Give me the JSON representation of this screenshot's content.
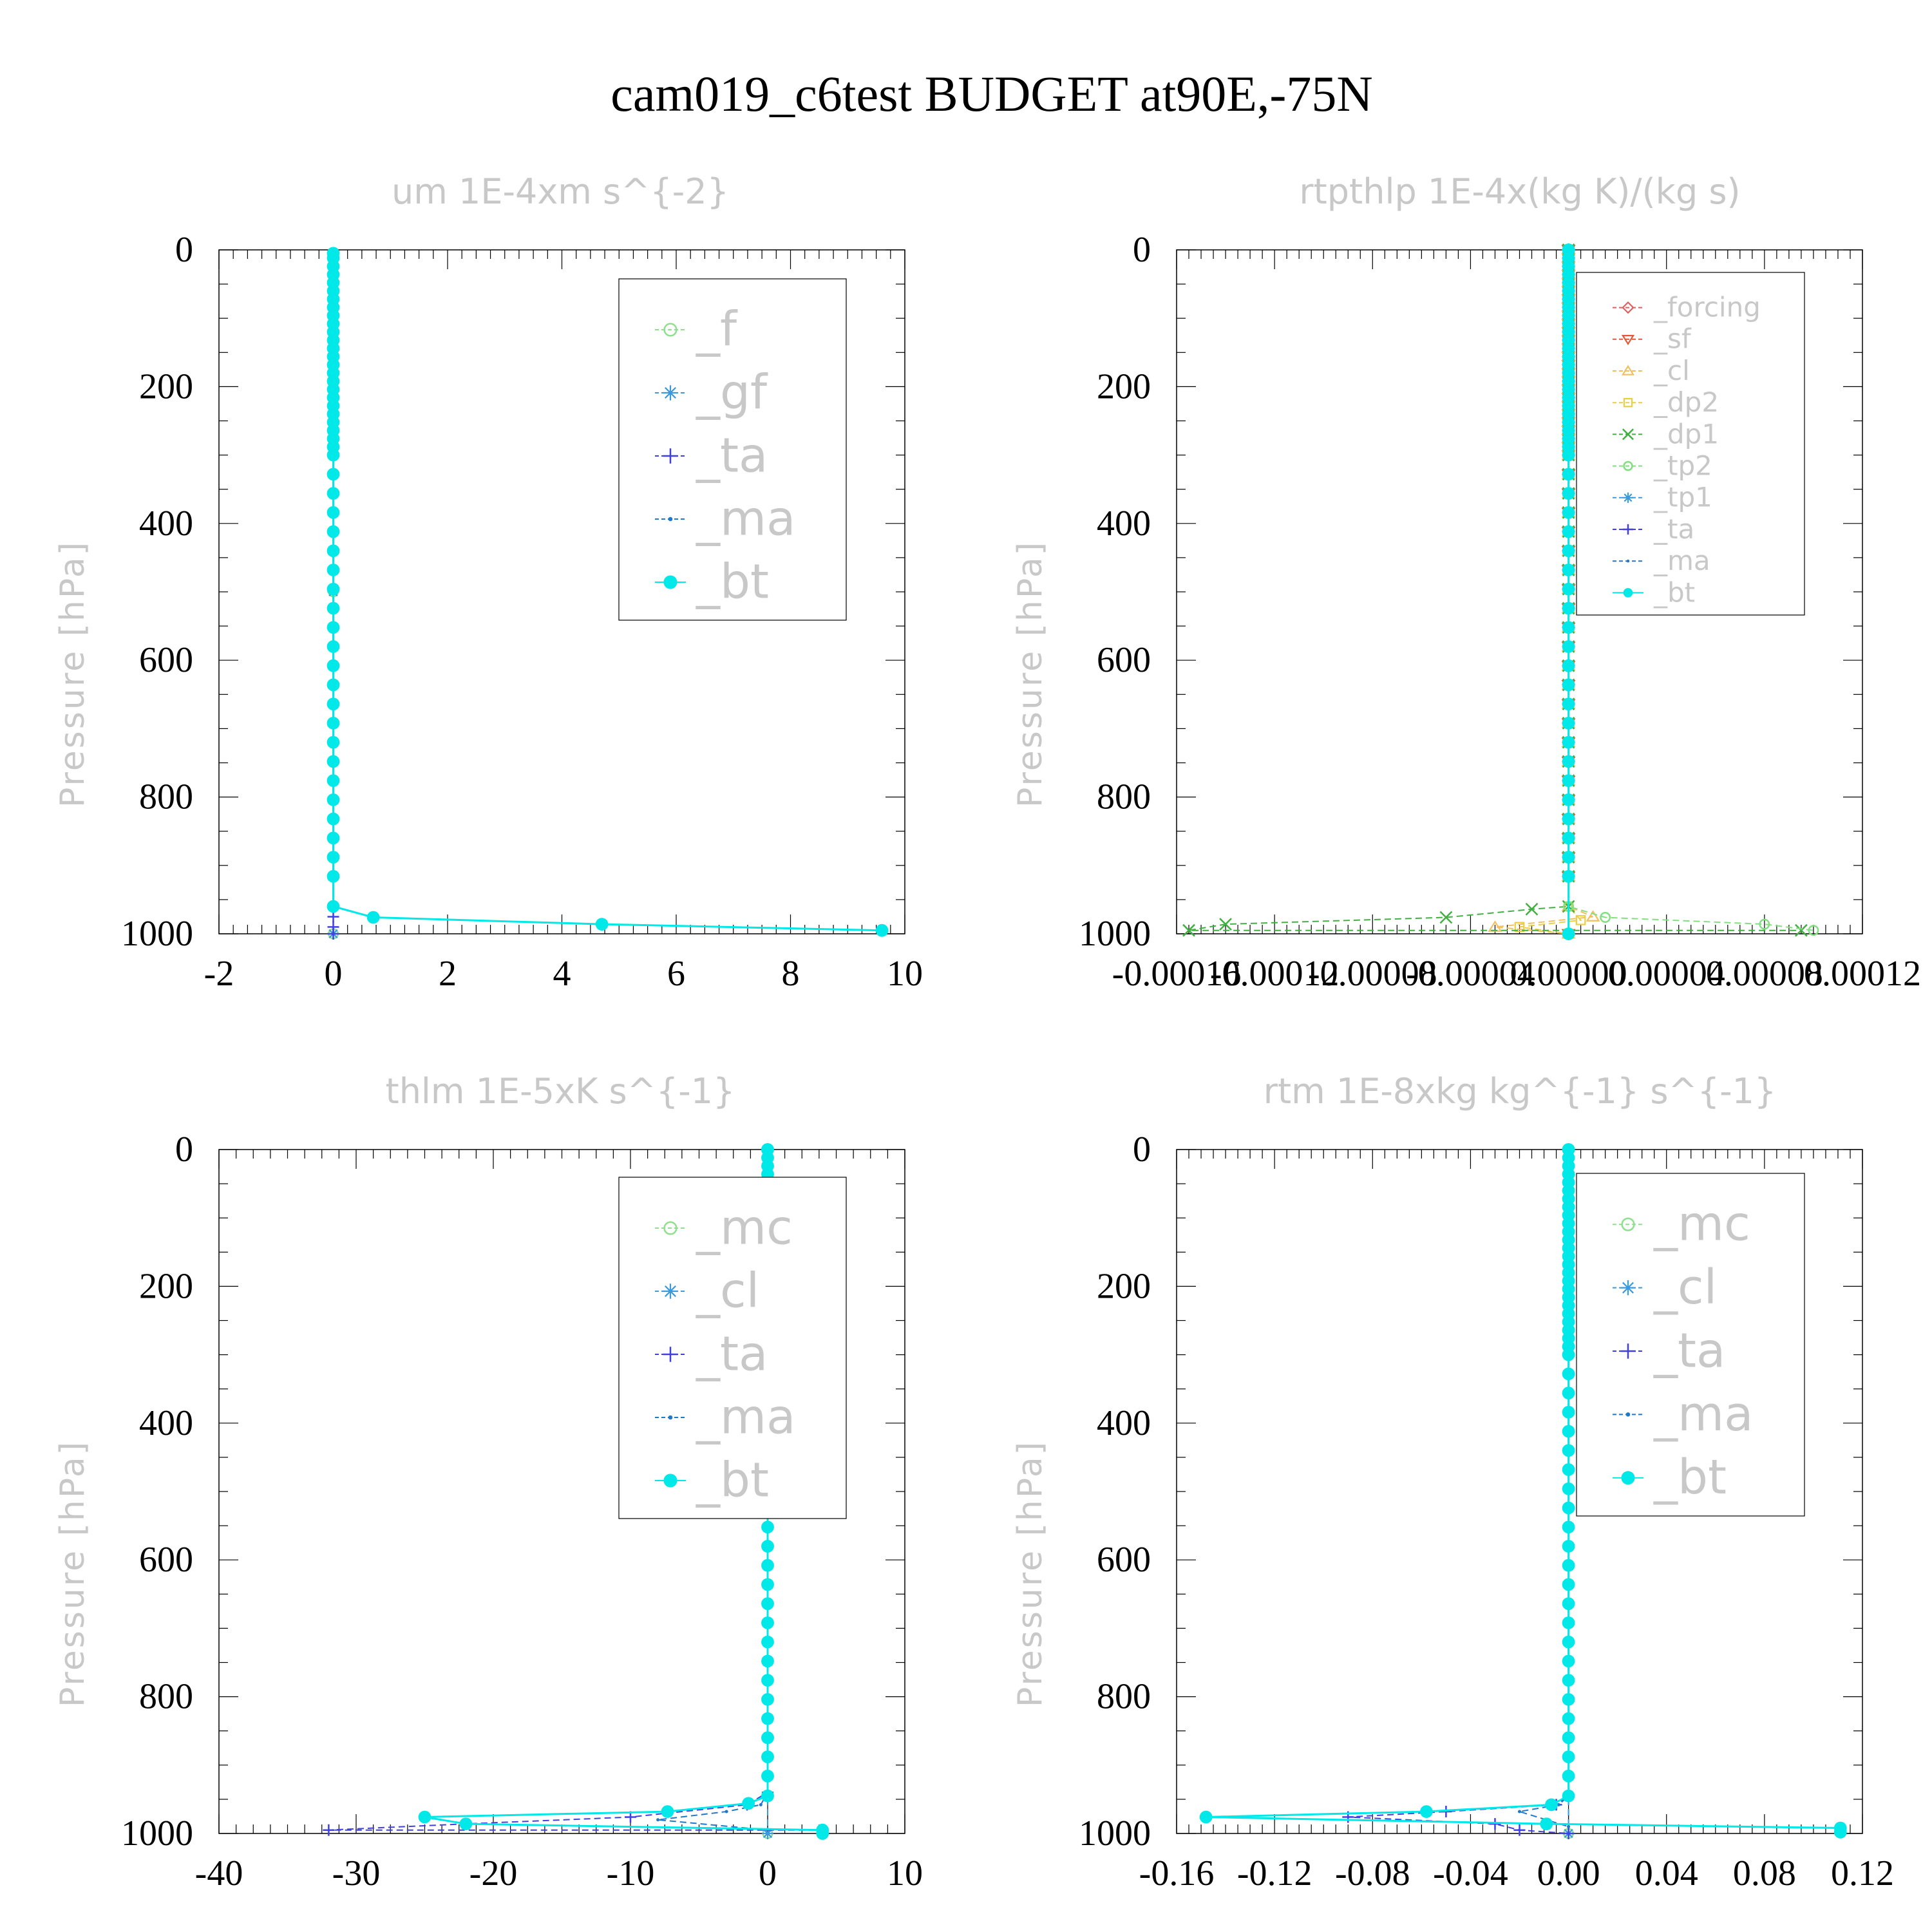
{
  "title": "cam019_c6test  BUDGET at90E,-75N",
  "chart_data": [
    {
      "type": "line",
      "title": "um   1E-4xm s^{-2}",
      "ylabel": "Pressure [hPa]",
      "xlabel": "",
      "xlim": [
        -2,
        10
      ],
      "ylim": [
        1000,
        0
      ],
      "xticks": [
        "-2",
        "0",
        "2",
        "4",
        "6",
        "8",
        "10"
      ],
      "yticks": [
        "0",
        "200",
        "400",
        "600",
        "800",
        "1000"
      ],
      "legend_position": "top-right",
      "series": [
        {
          "name": "_f",
          "color": "#8ee08e",
          "marker": "circle",
          "dashed": true,
          "points": [
            [
              0,
              5
            ],
            [
              0,
              500
            ],
            [
              0,
              1000
            ]
          ]
        },
        {
          "name": "_gf",
          "color": "#3a9ae0",
          "marker": "star",
          "dashed": true,
          "points": [
            [
              0,
              5
            ],
            [
              0,
              500
            ],
            [
              0,
              1000
            ]
          ]
        },
        {
          "name": "_ta",
          "color": "#4040e0",
          "marker": "plus",
          "dashed": true,
          "points": [
            [
              0,
              5
            ],
            [
              0,
              960
            ],
            [
              0,
              975
            ],
            [
              0,
              990
            ],
            [
              0,
              1000
            ]
          ]
        },
        {
          "name": "_ma",
          "color": "#1f78c8",
          "marker": "dot",
          "dashed": true,
          "points": [
            [
              0,
              5
            ],
            [
              0,
              960
            ],
            [
              0.7,
              976
            ],
            [
              4.7,
              986
            ],
            [
              9.6,
              995
            ]
          ]
        },
        {
          "name": "_bt",
          "color": "#00e8e8",
          "marker": "filled-circle",
          "dashed": false,
          "points": [
            [
              0,
              5
            ],
            [
              0,
              960
            ],
            [
              0.7,
              976
            ],
            [
              4.7,
              986
            ],
            [
              9.6,
              995
            ]
          ]
        }
      ]
    },
    {
      "type": "line",
      "title": "rtpthlp   1E-4x(kg K)/(kg s)",
      "ylabel": "Pressure [hPa]",
      "xlabel": "",
      "xlim": [
        -0.00016,
        0.00012
      ],
      "ylim": [
        1000,
        0
      ],
      "xticks": [
        "-0.00016",
        "-0.00012",
        "-0.00008",
        "-0.00004",
        "0.00000",
        "0.00004",
        "0.00008",
        "0.00012"
      ],
      "yticks": [
        "0",
        "200",
        "400",
        "600",
        "800",
        "1000"
      ],
      "legend_position": "top-right",
      "series": [
        {
          "name": "_forcing",
          "color": "#e06060",
          "marker": "diamond",
          "dashed": true,
          "points": [
            [
              0,
              0
            ],
            [
              0,
              1000
            ]
          ]
        },
        {
          "name": "_sf",
          "color": "#e05a3a",
          "marker": "triangle-down",
          "dashed": true,
          "points": [
            [
              0,
              0
            ],
            [
              0,
              1000
            ]
          ]
        },
        {
          "name": "_cl",
          "color": "#f0c060",
          "marker": "triangle-up",
          "dashed": true,
          "points": [
            [
              0,
              0
            ],
            [
              0,
              960
            ],
            [
              1e-05,
              975
            ],
            [
              -3e-05,
              990
            ],
            [
              0,
              1000
            ]
          ]
        },
        {
          "name": "_dp2",
          "color": "#e8d040",
          "marker": "square",
          "dashed": true,
          "points": [
            [
              0,
              0
            ],
            [
              0,
              960
            ],
            [
              5e-06,
              980
            ],
            [
              -2e-05,
              990
            ],
            [
              0,
              1000
            ]
          ]
        },
        {
          "name": "_dp1",
          "color": "#40b040",
          "marker": "cross",
          "dashed": true,
          "points": [
            [
              0,
              0
            ],
            [
              0,
              960
            ],
            [
              -1.5e-05,
              964
            ],
            [
              -5e-05,
              976
            ],
            [
              -0.00014,
              986
            ],
            [
              -0.000155,
              995
            ],
            [
              9.5e-05,
              995
            ]
          ]
        },
        {
          "name": "_tp2",
          "color": "#80e080",
          "marker": "circle",
          "dashed": true,
          "points": [
            [
              0,
              0
            ],
            [
              0,
              960
            ],
            [
              1.5e-05,
              976
            ],
            [
              8e-05,
              986
            ],
            [
              0.0001,
              995
            ]
          ]
        },
        {
          "name": "_tp1",
          "color": "#3a9ae0",
          "marker": "star",
          "dashed": true,
          "points": [
            [
              0,
              0
            ],
            [
              0,
              1000
            ]
          ]
        },
        {
          "name": "_ta",
          "color": "#4040e0",
          "marker": "plus",
          "dashed": true,
          "points": [
            [
              0,
              0
            ],
            [
              0,
              1000
            ]
          ]
        },
        {
          "name": "_ma",
          "color": "#1f78c8",
          "marker": "dot",
          "dashed": true,
          "points": [
            [
              0,
              0
            ],
            [
              0,
              1000
            ]
          ]
        },
        {
          "name": "_bt",
          "color": "#00e8e8",
          "marker": "filled-circle",
          "dashed": false,
          "points": [
            [
              0,
              0
            ],
            [
              0,
              1000
            ]
          ]
        }
      ]
    },
    {
      "type": "line",
      "title": "thlm   1E-5xK s^{-1}",
      "ylabel": "Pressure [hPa]",
      "xlabel": "",
      "xlim": [
        -40,
        10
      ],
      "ylim": [
        1000,
        0
      ],
      "xticks": [
        "-40",
        "-30",
        "-20",
        "-10",
        "0",
        "10"
      ],
      "yticks": [
        "0",
        "200",
        "400",
        "600",
        "800",
        "1000"
      ],
      "legend_position": "top-right",
      "series": [
        {
          "name": "_mc",
          "color": "#8ee08e",
          "marker": "circle",
          "dashed": true,
          "points": [
            [
              0,
              0
            ],
            [
              0,
              1000
            ]
          ]
        },
        {
          "name": "_cl",
          "color": "#3a9ae0",
          "marker": "star",
          "dashed": true,
          "points": [
            [
              0,
              0
            ],
            [
              0,
              1000
            ]
          ]
        },
        {
          "name": "_ta",
          "color": "#4040e0",
          "marker": "plus",
          "dashed": true,
          "points": [
            [
              0,
              0
            ],
            [
              0,
              940
            ],
            [
              -1.5,
              958
            ],
            [
              -10,
              976
            ],
            [
              -22,
              986
            ],
            [
              -32,
              995
            ],
            [
              4,
              995
            ]
          ]
        },
        {
          "name": "_ma",
          "color": "#1f78c8",
          "marker": "dot",
          "dashed": true,
          "points": [
            [
              0,
              0
            ],
            [
              0,
              940
            ],
            [
              -0.5,
              958
            ],
            [
              -3,
              968
            ],
            [
              -8,
              980
            ],
            [
              0,
              995
            ]
          ]
        },
        {
          "name": "_bt",
          "color": "#00e8e8",
          "marker": "filled-circle",
          "dashed": false,
          "points": [
            [
              0,
              0
            ],
            [
              0,
              945
            ],
            [
              -1.4,
              956
            ],
            [
              -7.3,
              968
            ],
            [
              -25,
              976
            ],
            [
              -22,
              986
            ],
            [
              4,
              995
            ],
            [
              4,
              1000
            ]
          ]
        }
      ]
    },
    {
      "type": "line",
      "title": "rtm   1E-8xkg kg^{-1} s^{-1}",
      "ylabel": "Pressure [hPa]",
      "xlabel": "",
      "xlim": [
        -0.16,
        0.12
      ],
      "ylim": [
        1000,
        0
      ],
      "xticks": [
        "-0.16",
        "-0.12",
        "-0.08",
        "-0.04",
        "0.00",
        "0.04",
        "0.08",
        "0.12"
      ],
      "yticks": [
        "0",
        "200",
        "400",
        "600",
        "800",
        "1000"
      ],
      "legend_position": "top-right",
      "series": [
        {
          "name": "_mc",
          "color": "#8ee08e",
          "marker": "circle",
          "dashed": true,
          "points": [
            [
              0,
              0
            ],
            [
              0,
              1000
            ]
          ]
        },
        {
          "name": "_cl",
          "color": "#3a9ae0",
          "marker": "star",
          "dashed": true,
          "points": [
            [
              0,
              0
            ],
            [
              0,
              1000
            ]
          ]
        },
        {
          "name": "_ta",
          "color": "#4040e0",
          "marker": "plus",
          "dashed": true,
          "points": [
            [
              0,
              0
            ],
            [
              0,
              945
            ],
            [
              -0.005,
              958
            ],
            [
              -0.05,
              968
            ],
            [
              -0.09,
              976
            ],
            [
              -0.03,
              986
            ],
            [
              -0.02,
              995
            ],
            [
              0,
              1000
            ]
          ]
        },
        {
          "name": "_ma",
          "color": "#1f78c8",
          "marker": "dot",
          "dashed": true,
          "points": [
            [
              0,
              0
            ],
            [
              0,
              945
            ],
            [
              -0.004,
              958
            ],
            [
              -0.02,
              968
            ],
            [
              0,
              990
            ]
          ]
        },
        {
          "name": "_bt",
          "color": "#00e8e8",
          "marker": "filled-circle",
          "dashed": false,
          "points": [
            [
              0,
              0
            ],
            [
              0,
              945
            ],
            [
              -0.007,
              958
            ],
            [
              -0.058,
              968
            ],
            [
              -0.148,
              976
            ],
            [
              -0.009,
              986
            ],
            [
              0.111,
              992
            ],
            [
              0.111,
              998
            ]
          ]
        }
      ]
    }
  ]
}
